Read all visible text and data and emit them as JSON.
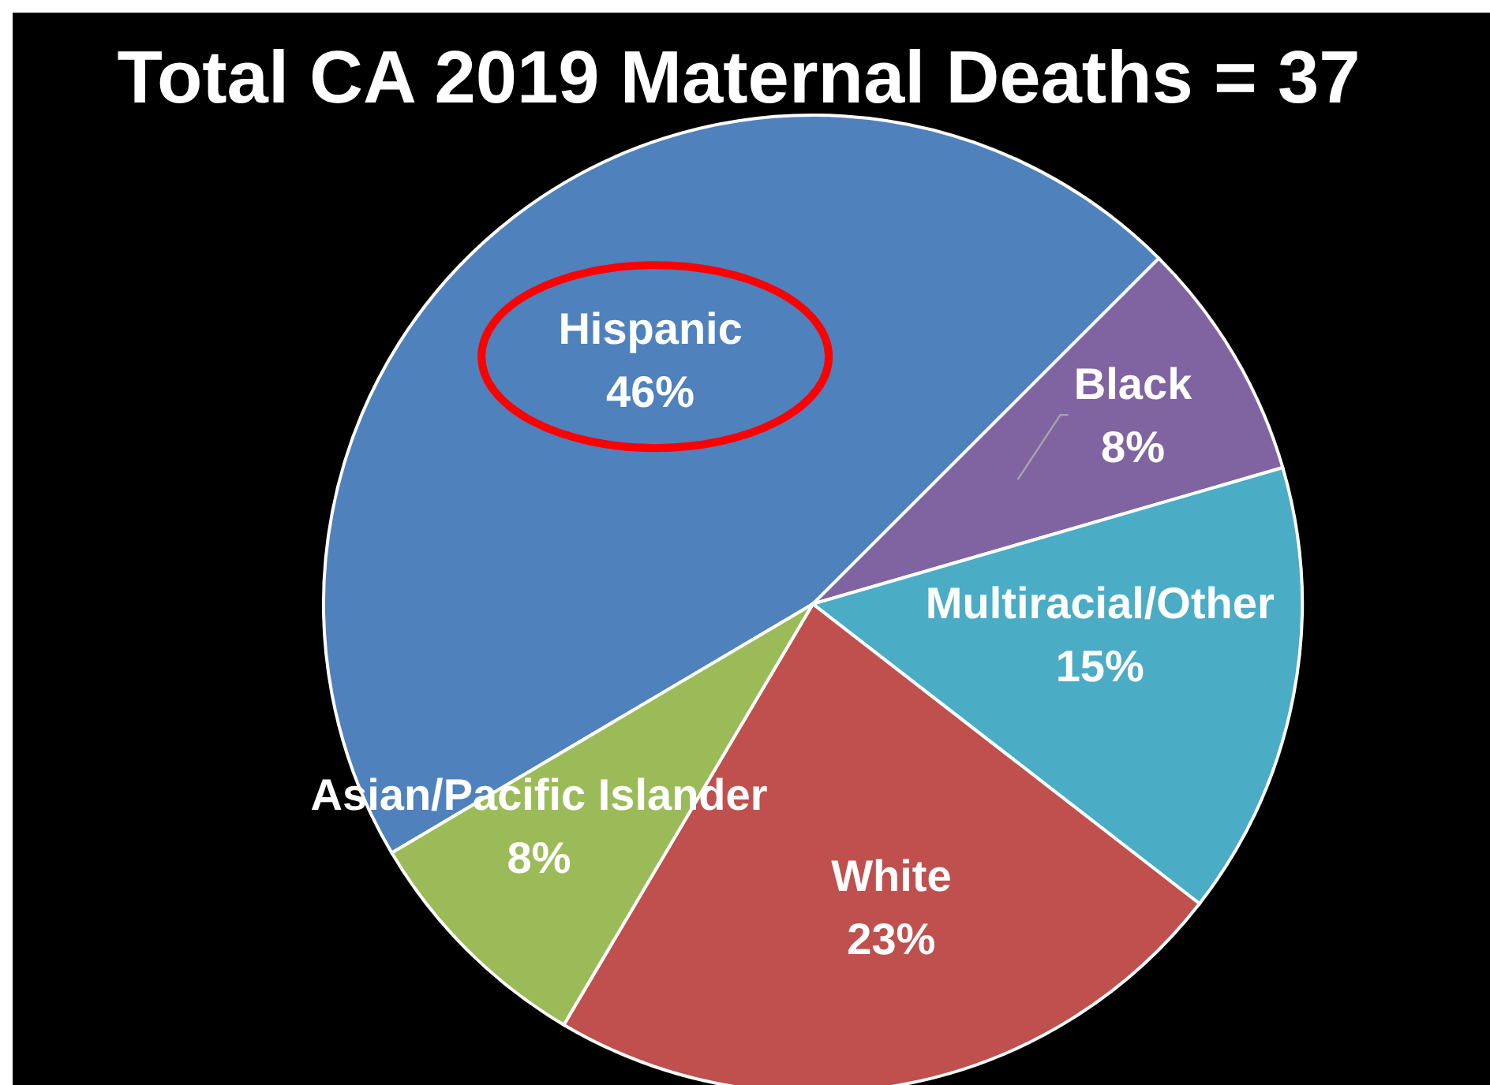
{
  "chart_data": {
    "type": "pie",
    "title": "Total CA 2019 Maternal Deaths = 37",
    "categories": [
      "Hispanic",
      "Black",
      "Multiracial/Other",
      "White",
      "Asian/Pacific Islander"
    ],
    "values": [
      46,
      8,
      15,
      23,
      8
    ],
    "value_labels": [
      "46%",
      "8%",
      "15%",
      "23%",
      "8%"
    ],
    "colors": [
      "#4f81bd",
      "#8064a2",
      "#4bacc6",
      "#c0504d",
      "#9bbb59"
    ]
  }
}
